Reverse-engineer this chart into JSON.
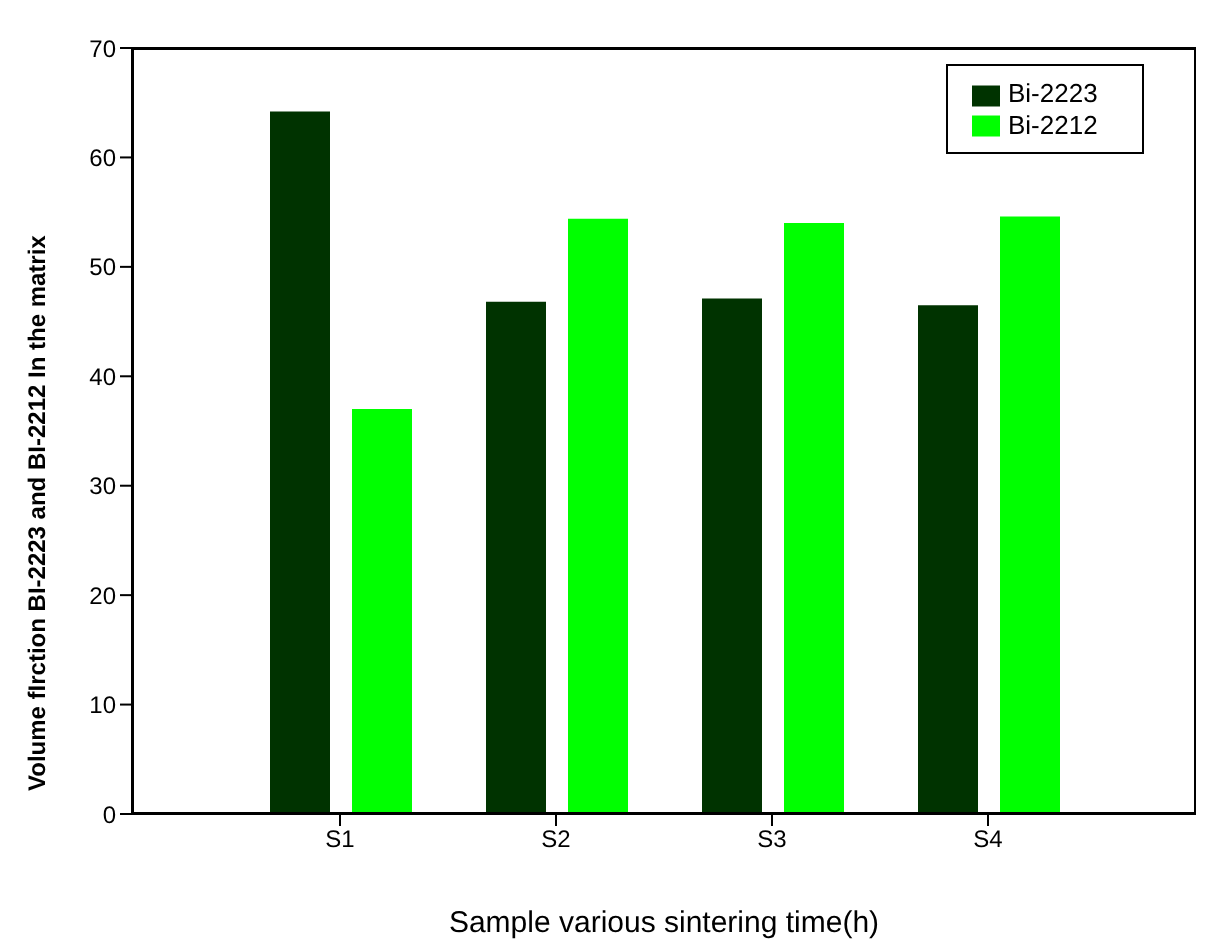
{
  "chart_data": {
    "type": "bar",
    "xlabel": "Sample various sintering time(h)",
    "ylabel": "Volume fIrction BI-2223 and BI-2212 In the matrix",
    "categories": [
      "S1",
      "S2",
      "S3",
      "S4"
    ],
    "series": [
      {
        "name": "Bi-2223",
        "color": "#003300",
        "values": [
          64.2,
          46.8,
          47.1,
          46.5
        ]
      },
      {
        "name": "Bi-2212",
        "color": "#00ff00",
        "values": [
          37.0,
          54.4,
          54.0,
          54.6
        ]
      }
    ],
    "ylim": [
      0,
      70
    ],
    "yticks": [
      0,
      10,
      20,
      30,
      40,
      50,
      60,
      70
    ],
    "legend": "top right"
  }
}
